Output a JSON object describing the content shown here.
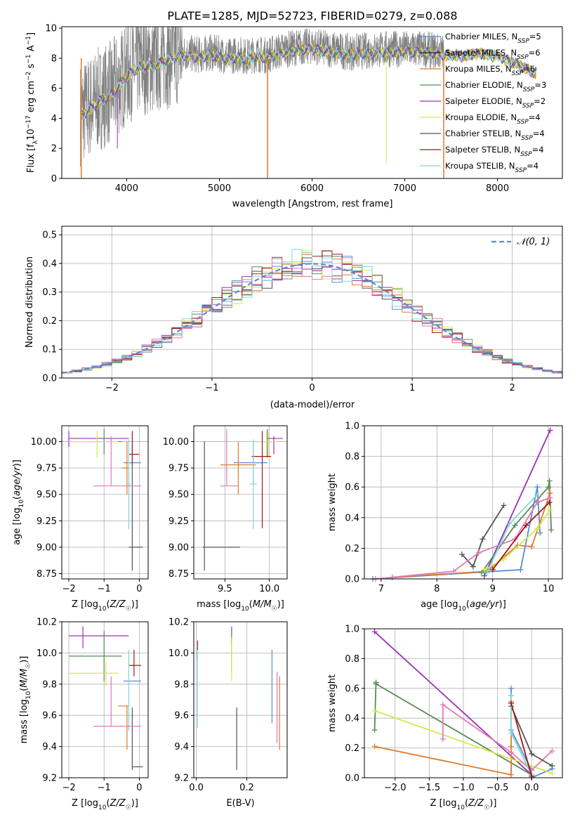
{
  "title": "PLATE=1285, MJD=52723, FIBERID=0279, z=0.088",
  "colors": {
    "chabrier_miles": "#5b8bd6",
    "salpeter_miles": "#2a2a2a",
    "kroupa_miles": "#e07b2a",
    "chabrier_elodie": "#5a8a5a",
    "salpeter_elodie": "#9b30b5",
    "kroupa_elodie": "#d4e84a",
    "chabrier_stelib": "#555555",
    "salpeter_stelib": "#a01818",
    "kroupa_stelib": "#7fd8dc",
    "pink": "#e07ab8",
    "data": "#808080"
  },
  "chart_data": [
    {
      "id": "spectrum",
      "type": "line",
      "title": "PLATE=1285, MJD=52723, FIBERID=0279, z=0.088",
      "xlabel": "wavelength [Angstrom, rest frame]",
      "ylabel": "Flux [f_λ 10^-17 erg cm^-2 s^-1 A^-1]",
      "xlim": [
        3300,
        8700
      ],
      "ylim": [
        0,
        10.1
      ],
      "xticks": [
        "4000",
        "5000",
        "6000",
        "7000",
        "8000"
      ],
      "yticks": [
        "0",
        "2",
        "4",
        "6",
        "8",
        "10"
      ],
      "legend_position": "right",
      "series": [
        {
          "name": "Chabrier MILES, N_SSP=5"
        },
        {
          "name": "Salpeter MILES, N_SSP=6"
        },
        {
          "name": "Kroupa MILES, N_SSP=6"
        },
        {
          "name": "Chabrier ELODIE, N_SSP=3"
        },
        {
          "name": "Salpeter ELODIE, N_SSP=2"
        },
        {
          "name": "Kroupa ELODIE, N_SSP=4"
        },
        {
          "name": "Chabrier STELIB, N_SSP=4"
        },
        {
          "name": "Salpeter STELIB, N_SSP=4"
        },
        {
          "name": "Kroupa STELIB, N_SSP=4"
        }
      ],
      "continuum": {
        "x": [
          3500,
          3600,
          3700,
          3800,
          3900,
          4000,
          4100,
          4200,
          4300,
          4400,
          4500,
          4600,
          4700,
          4800,
          4900,
          5000,
          5100,
          5200,
          5300,
          5400,
          5500,
          5600,
          5800,
          6000,
          6200,
          6400,
          6600,
          6800,
          7000,
          7200,
          7400,
          7600,
          7800,
          8000,
          8200,
          8400
        ],
        "y": [
          4.3,
          4.8,
          5.3,
          5.6,
          6.2,
          7.0,
          7.5,
          7.7,
          7.7,
          8.0,
          8.2,
          8.4,
          8.3,
          8.2,
          8.4,
          8.3,
          8.1,
          8.3,
          8.1,
          8.3,
          8.2,
          8.4,
          8.7,
          8.8,
          8.6,
          8.4,
          8.5,
          8.6,
          8.6,
          8.6,
          8.4,
          8.3,
          8.5,
          8.3,
          7.8,
          7.2
        ]
      }
    },
    {
      "id": "residuals",
      "type": "bar",
      "xlabel": "(data-model)/error",
      "ylabel": "Normed distribution",
      "xlim": [
        -2.5,
        2.5
      ],
      "ylim": [
        0,
        0.53
      ],
      "xticks": [
        "−2",
        "−1",
        "0",
        "1",
        "2"
      ],
      "yticks": [
        "0.0",
        "0.1",
        "0.2",
        "0.3",
        "0.4",
        "0.5"
      ],
      "legend": "𝒩(0, 1)",
      "legend_position": "top-right"
    },
    {
      "id": "age_vs_Z",
      "type": "scatter",
      "xlabel": "Z [log10(Z/Z☉)]",
      "ylabel": "age [log10(age/yr)]",
      "xlim": [
        -2.2,
        0.25
      ],
      "ylim": [
        8.7,
        10.15
      ],
      "xticks": [
        "−2",
        "−1",
        "0"
      ],
      "yticks": [
        "8.75",
        "9.00",
        "9.25",
        "9.50",
        "9.75",
        "10.00"
      ],
      "points": [
        {
          "c": "chabrier_miles",
          "x": -0.2,
          "y": 9.8,
          "x0": -0.45,
          "x1": 0.05,
          "y0": 9.8,
          "y1": 9.8
        },
        {
          "c": "salpeter_elodie",
          "x": -2.0,
          "y": 10.03,
          "x0": -2.0,
          "x1": -0.3,
          "y0": 9.95,
          "y1": 10.1
        },
        {
          "c": "kroupa_miles",
          "x": -0.35,
          "y": 9.75,
          "x0": -0.5,
          "x1": -0.3,
          "y0": 9.5,
          "y1": 10.0
        },
        {
          "c": "chabrier_elodie",
          "x": -1.0,
          "y": 10.0,
          "x0": -2.0,
          "x1": -0.5,
          "y0": 9.88,
          "y1": 10.12
        },
        {
          "c": "kroupa_elodie",
          "x": -1.2,
          "y": 10.0,
          "x0": -2.0,
          "x1": -0.6,
          "y0": 9.85,
          "y1": 10.1
        },
        {
          "c": "chabrier_stelib",
          "x": -0.2,
          "y": 9.0,
          "x0": -0.3,
          "x1": 0.1,
          "y0": 8.78,
          "y1": 9.98
        },
        {
          "c": "salpeter_stelib",
          "x": -0.2,
          "y": 9.88,
          "x0": -0.3,
          "x1": 0.0,
          "y0": 9.78,
          "y1": 10.1
        },
        {
          "c": "kroupa_stelib",
          "x": -0.3,
          "y": 9.6,
          "x0": -0.35,
          "x1": -0.25,
          "y0": 9.17,
          "y1": 10.02
        },
        {
          "c": "pink",
          "x": -0.8,
          "y": 9.58,
          "x0": -1.3,
          "x1": 0.05,
          "y0": 9.58,
          "y1": 10.05
        }
      ]
    },
    {
      "id": "age_vs_mass",
      "type": "scatter",
      "xlabel": "mass [log10(M/M☉)]",
      "ylabel": "",
      "xlim": [
        9.15,
        10.2
      ],
      "ylim": [
        8.7,
        10.15
      ],
      "xticks": [
        "9.5",
        "10.0"
      ],
      "yticks": [
        "8.75",
        "9.00",
        "9.25",
        "9.50",
        "9.75",
        "10.00"
      ],
      "points": [
        {
          "c": "chabrier_miles",
          "x": 9.82,
          "y": 9.8,
          "x0": 9.6,
          "x1": 9.98,
          "y0": 9.6,
          "y1": 10.0
        },
        {
          "c": "salpeter_elodie",
          "x": 10.05,
          "y": 10.03,
          "x0": 9.98,
          "x1": 10.15,
          "y0": 9.88,
          "y1": 10.05
        },
        {
          "c": "kroupa_miles",
          "x": 9.65,
          "y": 9.78,
          "x0": 9.45,
          "x1": 9.85,
          "y0": 9.5,
          "y1": 10.0
        },
        {
          "c": "chabrier_elodie",
          "x": 9.98,
          "y": 10.0,
          "x0": 9.88,
          "x1": 10.05,
          "y0": 9.85,
          "y1": 10.12
        },
        {
          "c": "kroupa_elodie",
          "x": 9.97,
          "y": 10.0,
          "x0": 9.88,
          "x1": 10.08,
          "y0": 9.85,
          "y1": 10.1
        },
        {
          "c": "chabrier_stelib",
          "x": 9.27,
          "y": 9.0,
          "x0": 9.25,
          "x1": 9.67,
          "y0": 8.78,
          "y1": 10.0
        },
        {
          "c": "salpeter_stelib",
          "x": 9.92,
          "y": 9.86,
          "x0": 9.8,
          "x1": 10.02,
          "y0": 9.18,
          "y1": 10.1
        },
        {
          "c": "kroupa_stelib",
          "x": 9.82,
          "y": 9.6,
          "x0": 9.78,
          "x1": 9.86,
          "y0": 9.17,
          "y1": 10.02
        },
        {
          "c": "pink",
          "x": 9.52,
          "y": 9.58,
          "x0": 9.45,
          "x1": 9.65,
          "y0": 9.58,
          "y1": 10.12
        }
      ]
    },
    {
      "id": "massweight_vs_age",
      "type": "line",
      "xlabel": "age [log10(age/yr)]",
      "ylabel": "mass weight",
      "xlim": [
        6.7,
        10.25
      ],
      "ylim": [
        0,
        1.0
      ],
      "xticks": [
        "7",
        "8",
        "9",
        "10"
      ],
      "yticks": [
        "0.0",
        "0.2",
        "0.4",
        "0.6",
        "0.8",
        "1.0"
      ],
      "series": [
        {
          "c": "salpeter_elodie",
          "x": [
            8.85,
            10.03
          ],
          "y": [
            0.02,
            0.97
          ]
        },
        {
          "c": "chabrier_elodie",
          "x": [
            8.8,
            9.4,
            10.0,
            10.02,
            10.05
          ],
          "y": [
            0.04,
            0.35,
            0.6,
            0.64,
            0.32
          ]
        },
        {
          "c": "chabrier_stelib",
          "x": [
            8.45,
            8.65,
            8.82,
            9.2
          ],
          "y": [
            0.16,
            0.08,
            0.26,
            0.48
          ]
        },
        {
          "c": "chabrier_miles",
          "x": [
            6.85,
            9.5,
            9.8,
            9.85
          ],
          "y": [
            0.0,
            0.06,
            0.6,
            0.3
          ]
        },
        {
          "c": "kroupa_miles",
          "x": [
            7.2,
            8.9,
            9.45,
            9.7,
            10.03
          ],
          "y": [
            0.01,
            0.05,
            0.22,
            0.21,
            0.56
          ]
        },
        {
          "c": "pink",
          "x": [
            6.9,
            8.3,
            8.75,
            9.4,
            9.8,
            10.03
          ],
          "y": [
            0.0,
            0.05,
            0.17,
            0.26,
            0.5,
            0.53
          ]
        },
        {
          "c": "kroupa_elodie",
          "x": [
            8.85,
            9.2,
            9.8,
            10.03
          ],
          "y": [
            0.06,
            0.13,
            0.33,
            0.45
          ]
        },
        {
          "c": "kroupa_stelib",
          "x": [
            8.9,
            9.3,
            9.8
          ],
          "y": [
            0.04,
            0.36,
            0.55
          ]
        },
        {
          "c": "salpeter_stelib",
          "x": [
            9.0,
            9.6,
            10.02
          ],
          "y": [
            0.06,
            0.35,
            0.5
          ]
        }
      ]
    },
    {
      "id": "mass_vs_Z",
      "type": "scatter",
      "xlabel": "Z [log10(Z/Z☉)]",
      "ylabel": "mass [log10(M/M☉)]",
      "xlim": [
        -2.2,
        0.25
      ],
      "ylim": [
        9.2,
        10.2
      ],
      "xticks": [
        "−2",
        "−1",
        "0"
      ],
      "yticks": [
        "9.2",
        "9.4",
        "9.6",
        "9.8",
        "10.0",
        "10.2"
      ],
      "points": [
        {
          "c": "chabrier_miles",
          "x": -0.2,
          "y": 9.82,
          "x0": -0.45,
          "x1": 0.05,
          "y0": 9.82,
          "y1": 9.82
        },
        {
          "c": "salpeter_elodie",
          "x": -1.6,
          "y": 10.11,
          "x0": -2.0,
          "x1": -0.3,
          "y0": 10.03,
          "y1": 10.17
        },
        {
          "c": "kroupa_miles",
          "x": -0.35,
          "y": 9.66,
          "x0": -0.6,
          "x1": -0.3,
          "y0": 9.38,
          "y1": 9.66
        },
        {
          "c": "chabrier_elodie",
          "x": -1.0,
          "y": 9.98,
          "x0": -2.0,
          "x1": -0.5,
          "y0": 9.82,
          "y1": 10.14
        },
        {
          "c": "kroupa_elodie",
          "x": -0.95,
          "y": 9.87,
          "x0": -2.0,
          "x1": -0.6,
          "y0": 9.79,
          "y1": 9.95
        },
        {
          "c": "chabrier_stelib",
          "x": -0.2,
          "y": 9.27,
          "x0": -0.2,
          "x1": 0.1,
          "y0": 9.25,
          "y1": 9.65
        },
        {
          "c": "salpeter_stelib",
          "x": -0.15,
          "y": 9.92,
          "x0": -0.3,
          "x1": 0.05,
          "y0": 9.85,
          "y1": 10.02
        },
        {
          "c": "kroupa_stelib",
          "x": -0.3,
          "y": 9.6,
          "x0": -0.35,
          "x1": -0.25,
          "y0": 9.5,
          "y1": 10.02
        },
        {
          "c": "pink",
          "x": -0.8,
          "y": 9.53,
          "x0": -1.3,
          "x1": 0.05,
          "y0": 9.53,
          "y1": 9.85
        }
      ]
    },
    {
      "id": "mass_vs_ebv",
      "type": "scatter",
      "xlabel": "E(B-V)",
      "ylabel": "",
      "xlim": [
        -0.01,
        0.36
      ],
      "ylim": [
        9.2,
        10.2
      ],
      "xticks": [
        "0.0",
        "0.2"
      ],
      "yticks": [
        "9.2",
        "9.4",
        "9.6",
        "9.8",
        "10.0",
        "10.2"
      ],
      "points": [
        {
          "c": "chabrier_miles",
          "x": 0.3,
          "y": 9.78,
          "y0": 9.55,
          "y1": 10.02
        },
        {
          "c": "salpeter_elodie",
          "x": 0.14,
          "y": 10.1,
          "y0": 10.05,
          "y1": 10.17
        },
        {
          "c": "kroupa_miles",
          "x": 0.33,
          "y": 9.6,
          "y0": 9.38,
          "y1": 9.85
        },
        {
          "c": "chabrier_elodie",
          "x": 0.14,
          "y": 10.0,
          "y0": 9.88,
          "y1": 10.14
        },
        {
          "c": "kroupa_elodie",
          "x": 0.14,
          "y": 9.95,
          "y0": 9.82,
          "y1": 10.1
        },
        {
          "c": "chabrier_stelib",
          "x": 0.16,
          "y": 9.45,
          "y0": 9.25,
          "y1": 9.65
        },
        {
          "c": "salpeter_stelib",
          "x": 0.005,
          "y": 10.0,
          "y0": 9.95,
          "y1": 10.08
        },
        {
          "c": "kroupa_stelib",
          "x": 0.005,
          "y": 9.75,
          "y0": 9.52,
          "y1": 10.02
        },
        {
          "c": "pink",
          "x": 0.32,
          "y": 9.65,
          "y0": 9.42,
          "y1": 9.88
        }
      ]
    },
    {
      "id": "massweight_vs_Z",
      "type": "line",
      "xlabel": "Z [log10(Z/Z☉)]",
      "ylabel": "mass weight",
      "xlim": [
        -2.45,
        0.45
      ],
      "ylim": [
        0,
        1.0
      ],
      "xticks": [
        "−2.0",
        "−1.5",
        "−1.0",
        "−0.5",
        "0.0"
      ],
      "yticks": [
        "0.0",
        "0.2",
        "0.4",
        "0.6",
        "0.8",
        "1.0"
      ],
      "series": [
        {
          "c": "salpeter_elodie",
          "x": [
            -2.3,
            0.0
          ],
          "y": [
            0.98,
            0.02
          ]
        },
        {
          "c": "chabrier_elodie",
          "x": [
            -2.3,
            -2.28,
            -2.28,
            0.0
          ],
          "y": [
            0.32,
            0.64,
            0.63,
            0.02
          ]
        },
        {
          "c": "chabrier_miles",
          "x": [
            -0.3,
            -0.3,
            0.0,
            0.0,
            0.3
          ],
          "y": [
            0.6,
            0.32,
            0.05,
            0.0,
            0.06
          ]
        },
        {
          "c": "kroupa_miles",
          "x": [
            -2.3,
            -0.3,
            -0.3,
            -0.3
          ],
          "y": [
            0.21,
            0.02,
            0.51,
            0.21
          ]
        },
        {
          "c": "kroupa_elodie",
          "x": [
            -2.3,
            0.3
          ],
          "y": [
            0.45,
            0.03
          ]
        },
        {
          "c": "pink",
          "x": [
            -1.3,
            -1.3,
            -0.3,
            0.0,
            0.3
          ],
          "y": [
            0.26,
            0.49,
            0.17,
            0.05,
            0.18
          ]
        },
        {
          "c": "chabrier_stelib",
          "x": [
            -0.3,
            -0.3,
            0.0,
            0.3
          ],
          "y": [
            0.55,
            0.48,
            0.16,
            0.08
          ]
        },
        {
          "c": "kroupa_stelib",
          "x": [
            -0.3,
            -0.3,
            0.0
          ],
          "y": [
            0.55,
            0.3,
            0.02
          ]
        },
        {
          "c": "salpeter_stelib",
          "x": [
            -0.3,
            0.0
          ],
          "y": [
            0.5,
            0.01
          ]
        }
      ]
    }
  ]
}
